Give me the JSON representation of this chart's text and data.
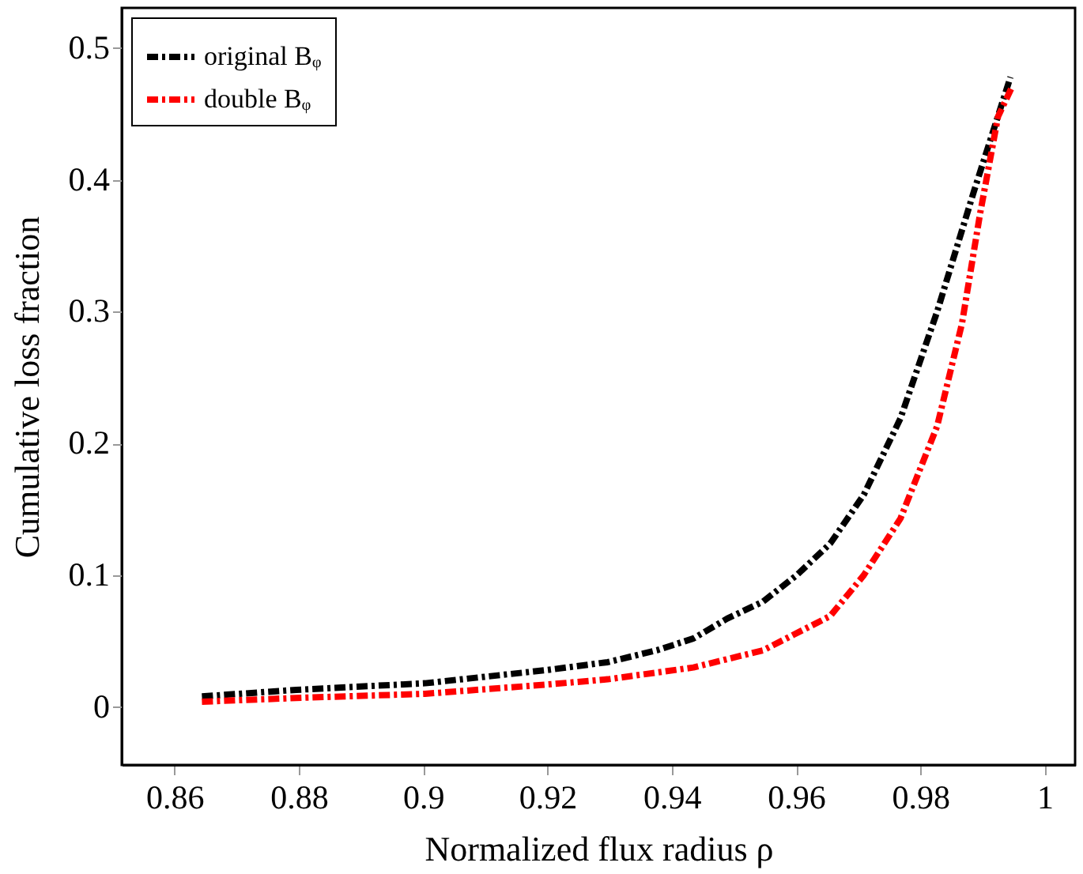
{
  "chart_data": {
    "type": "line",
    "xlabel": "Normalized flux radius ρ",
    "ylabel": "Cumulative loss fraction",
    "xlim": [
      0.8515,
      1.0049
    ],
    "ylim": [
      -0.044,
      0.5305
    ],
    "xticks": [
      0.86,
      0.88,
      0.9,
      0.92,
      0.94,
      0.96,
      0.98,
      1
    ],
    "yticks": [
      0,
      0.1,
      0.2,
      0.3,
      0.4,
      0.5
    ],
    "grid": false,
    "legend": "top left",
    "line_style": "dashed",
    "marker": "none",
    "series": [
      {
        "name": "original Bᵩ",
        "color": "#000000",
        "x": [
          0.8644,
          0.8796,
          0.9003,
          0.9199,
          0.9297,
          0.9376,
          0.9435,
          0.9489,
          0.9547,
          0.9601,
          0.9655,
          0.9709,
          0.9768,
          0.9827,
          0.9886,
          0.9945
        ],
        "values": [
          0.008,
          0.013,
          0.018,
          0.028,
          0.034,
          0.043,
          0.052,
          0.067,
          0.08,
          0.1,
          0.124,
          0.161,
          0.219,
          0.3,
          0.391,
          0.478
        ]
      },
      {
        "name": "double Bᵩ",
        "color": "#ff0000",
        "x": [
          0.8644,
          0.8806,
          0.9003,
          0.9199,
          0.9297,
          0.9435,
          0.9547,
          0.9655,
          0.9709,
          0.9768,
          0.9827,
          0.9867,
          0.9896,
          0.9925,
          0.9947
        ],
        "values": [
          0.004,
          0.007,
          0.01,
          0.017,
          0.021,
          0.03,
          0.043,
          0.069,
          0.1,
          0.143,
          0.213,
          0.291,
          0.374,
          0.448,
          0.47
        ]
      }
    ]
  }
}
